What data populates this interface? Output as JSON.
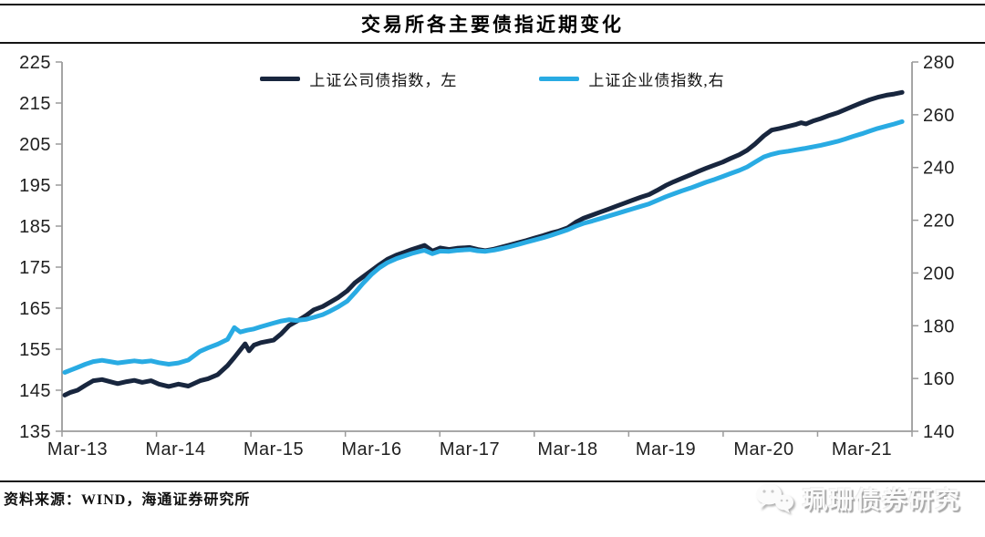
{
  "header": {
    "title": "交易所各主要债指近期变化"
  },
  "legend": {
    "items": [
      {
        "label": "上证公司债指数，左"
      },
      {
        "label": "上证企业债指数,右"
      }
    ]
  },
  "chart_data": {
    "type": "line",
    "title": "交易所各主要债指近期变化",
    "grid": false,
    "legend_position": "top",
    "x_axis": {
      "tick_labels": [
        "Mar-13",
        "Mar-14",
        "Mar-15",
        "Mar-16",
        "Mar-17",
        "Mar-18",
        "Mar-19",
        "Mar-20",
        "Mar-21"
      ]
    },
    "left_axis": {
      "min": 135,
      "max": 225,
      "ticks": [
        135,
        145,
        155,
        165,
        175,
        185,
        195,
        205,
        215,
        225
      ]
    },
    "right_axis": {
      "min": 140,
      "max": 280,
      "ticks": [
        140,
        160,
        180,
        200,
        220,
        240,
        260,
        280
      ]
    },
    "series": [
      {
        "name": "上证公司债指数，左",
        "axis": "left",
        "color": "#18263e",
        "points": [
          [
            2013.04,
            143.8
          ],
          [
            2013.1,
            144.5
          ],
          [
            2013.17,
            145.0
          ],
          [
            2013.25,
            146.2
          ],
          [
            2013.33,
            147.3
          ],
          [
            2013.42,
            147.6
          ],
          [
            2013.5,
            147.1
          ],
          [
            2013.58,
            146.6
          ],
          [
            2013.67,
            147.1
          ],
          [
            2013.75,
            147.4
          ],
          [
            2013.83,
            146.9
          ],
          [
            2013.92,
            147.3
          ],
          [
            2014.0,
            146.5
          ],
          [
            2014.1,
            145.9
          ],
          [
            2014.2,
            146.5
          ],
          [
            2014.3,
            146.0
          ],
          [
            2014.42,
            147.3
          ],
          [
            2014.5,
            147.8
          ],
          [
            2014.6,
            148.8
          ],
          [
            2014.7,
            151.0
          ],
          [
            2014.77,
            153.0
          ],
          [
            2014.83,
            154.8
          ],
          [
            2014.88,
            156.3
          ],
          [
            2014.92,
            154.6
          ],
          [
            2014.97,
            156.0
          ],
          [
            2015.04,
            156.6
          ],
          [
            2015.17,
            157.2
          ],
          [
            2015.25,
            158.8
          ],
          [
            2015.33,
            160.8
          ],
          [
            2015.42,
            162.0
          ],
          [
            2015.5,
            163.2
          ],
          [
            2015.58,
            164.6
          ],
          [
            2015.67,
            165.4
          ],
          [
            2015.75,
            166.5
          ],
          [
            2015.83,
            167.6
          ],
          [
            2015.92,
            169.2
          ],
          [
            2016.0,
            171.2
          ],
          [
            2016.08,
            172.6
          ],
          [
            2016.17,
            174.2
          ],
          [
            2016.25,
            175.6
          ],
          [
            2016.33,
            176.9
          ],
          [
            2016.42,
            177.9
          ],
          [
            2016.5,
            178.6
          ],
          [
            2016.58,
            179.3
          ],
          [
            2016.67,
            180.0
          ],
          [
            2016.71,
            180.3
          ],
          [
            2016.79,
            178.9
          ],
          [
            2016.87,
            179.7
          ],
          [
            2016.96,
            179.3
          ],
          [
            2017.04,
            179.6
          ],
          [
            2017.17,
            179.8
          ],
          [
            2017.25,
            179.3
          ],
          [
            2017.33,
            179.0
          ],
          [
            2017.42,
            179.4
          ],
          [
            2017.5,
            179.9
          ],
          [
            2017.58,
            180.4
          ],
          [
            2017.67,
            181.0
          ],
          [
            2017.75,
            181.5
          ],
          [
            2017.83,
            182.1
          ],
          [
            2017.92,
            182.7
          ],
          [
            2018.0,
            183.3
          ],
          [
            2018.08,
            183.8
          ],
          [
            2018.17,
            184.6
          ],
          [
            2018.25,
            185.9
          ],
          [
            2018.33,
            186.9
          ],
          [
            2018.42,
            187.7
          ],
          [
            2018.5,
            188.4
          ],
          [
            2018.58,
            189.1
          ],
          [
            2018.67,
            189.9
          ],
          [
            2018.75,
            190.6
          ],
          [
            2018.83,
            191.3
          ],
          [
            2018.92,
            192.1
          ],
          [
            2019.0,
            192.7
          ],
          [
            2019.08,
            193.7
          ],
          [
            2019.17,
            194.9
          ],
          [
            2019.25,
            195.8
          ],
          [
            2019.33,
            196.6
          ],
          [
            2019.42,
            197.5
          ],
          [
            2019.5,
            198.3
          ],
          [
            2019.58,
            199.1
          ],
          [
            2019.67,
            199.9
          ],
          [
            2019.75,
            200.6
          ],
          [
            2019.83,
            201.5
          ],
          [
            2019.92,
            202.4
          ],
          [
            2020.0,
            203.5
          ],
          [
            2020.08,
            205.0
          ],
          [
            2020.17,
            207.0
          ],
          [
            2020.25,
            208.4
          ],
          [
            2020.33,
            208.8
          ],
          [
            2020.42,
            209.3
          ],
          [
            2020.5,
            209.8
          ],
          [
            2020.55,
            210.2
          ],
          [
            2020.6,
            209.9
          ],
          [
            2020.67,
            210.6
          ],
          [
            2020.75,
            211.2
          ],
          [
            2020.83,
            211.9
          ],
          [
            2020.92,
            212.6
          ],
          [
            2021.0,
            213.4
          ],
          [
            2021.08,
            214.2
          ],
          [
            2021.17,
            215.1
          ],
          [
            2021.25,
            215.8
          ],
          [
            2021.33,
            216.4
          ],
          [
            2021.42,
            216.9
          ],
          [
            2021.5,
            217.2
          ],
          [
            2021.58,
            217.6
          ]
        ]
      },
      {
        "name": "上证企业债指数,右",
        "axis": "right",
        "color": "#29abe3",
        "points": [
          [
            2013.04,
            162.3
          ],
          [
            2013.1,
            163.2
          ],
          [
            2013.17,
            164.2
          ],
          [
            2013.25,
            165.4
          ],
          [
            2013.33,
            166.4
          ],
          [
            2013.42,
            166.9
          ],
          [
            2013.5,
            166.4
          ],
          [
            2013.58,
            165.9
          ],
          [
            2013.67,
            166.3
          ],
          [
            2013.75,
            166.7
          ],
          [
            2013.83,
            166.3
          ],
          [
            2013.92,
            166.7
          ],
          [
            2014.0,
            166.0
          ],
          [
            2014.1,
            165.4
          ],
          [
            2014.2,
            165.9
          ],
          [
            2014.3,
            167.0
          ],
          [
            2014.42,
            170.3
          ],
          [
            2014.5,
            171.6
          ],
          [
            2014.6,
            173.0
          ],
          [
            2014.7,
            174.8
          ],
          [
            2014.77,
            179.3
          ],
          [
            2014.83,
            177.6
          ],
          [
            2014.9,
            178.3
          ],
          [
            2014.97,
            178.8
          ],
          [
            2015.04,
            179.6
          ],
          [
            2015.17,
            181.0
          ],
          [
            2015.25,
            181.8
          ],
          [
            2015.33,
            182.3
          ],
          [
            2015.4,
            182.0
          ],
          [
            2015.5,
            182.4
          ],
          [
            2015.58,
            183.2
          ],
          [
            2015.67,
            184.2
          ],
          [
            2015.75,
            185.6
          ],
          [
            2015.83,
            187.2
          ],
          [
            2015.92,
            189.3
          ],
          [
            2016.0,
            192.5
          ],
          [
            2016.08,
            196.0
          ],
          [
            2016.17,
            199.5
          ],
          [
            2016.25,
            202.0
          ],
          [
            2016.33,
            203.9
          ],
          [
            2016.42,
            205.4
          ],
          [
            2016.5,
            206.4
          ],
          [
            2016.58,
            207.4
          ],
          [
            2016.67,
            208.3
          ],
          [
            2016.71,
            208.6
          ],
          [
            2016.79,
            207.3
          ],
          [
            2016.87,
            208.3
          ],
          [
            2016.96,
            208.2
          ],
          [
            2017.04,
            208.6
          ],
          [
            2017.17,
            208.9
          ],
          [
            2017.25,
            208.4
          ],
          [
            2017.33,
            208.2
          ],
          [
            2017.42,
            208.7
          ],
          [
            2017.5,
            209.3
          ],
          [
            2017.58,
            210.0
          ],
          [
            2017.67,
            210.9
          ],
          [
            2017.75,
            211.7
          ],
          [
            2017.83,
            212.5
          ],
          [
            2017.92,
            213.4
          ],
          [
            2018.0,
            214.3
          ],
          [
            2018.08,
            215.3
          ],
          [
            2018.17,
            216.4
          ],
          [
            2018.25,
            217.7
          ],
          [
            2018.33,
            218.8
          ],
          [
            2018.42,
            219.7
          ],
          [
            2018.5,
            220.6
          ],
          [
            2018.58,
            221.5
          ],
          [
            2018.67,
            222.5
          ],
          [
            2018.75,
            223.4
          ],
          [
            2018.83,
            224.3
          ],
          [
            2018.92,
            225.3
          ],
          [
            2019.0,
            226.2
          ],
          [
            2019.08,
            227.5
          ],
          [
            2019.17,
            228.9
          ],
          [
            2019.25,
            230.0
          ],
          [
            2019.33,
            231.1
          ],
          [
            2019.42,
            232.2
          ],
          [
            2019.5,
            233.3
          ],
          [
            2019.58,
            234.4
          ],
          [
            2019.67,
            235.5
          ],
          [
            2019.75,
            236.6
          ],
          [
            2019.83,
            237.7
          ],
          [
            2019.92,
            238.9
          ],
          [
            2020.0,
            240.2
          ],
          [
            2020.08,
            242.0
          ],
          [
            2020.17,
            244.0
          ],
          [
            2020.25,
            245.0
          ],
          [
            2020.33,
            245.7
          ],
          [
            2020.42,
            246.2
          ],
          [
            2020.5,
            246.7
          ],
          [
            2020.58,
            247.2
          ],
          [
            2020.67,
            247.8
          ],
          [
            2020.75,
            248.4
          ],
          [
            2020.83,
            249.1
          ],
          [
            2020.92,
            249.9
          ],
          [
            2021.0,
            250.8
          ],
          [
            2021.08,
            251.8
          ],
          [
            2021.17,
            252.8
          ],
          [
            2021.25,
            253.8
          ],
          [
            2021.33,
            254.8
          ],
          [
            2021.42,
            255.7
          ],
          [
            2021.5,
            256.5
          ],
          [
            2021.58,
            257.4
          ]
        ]
      }
    ]
  },
  "footer": {
    "source": "资料来源：WIND，海通证券研究所"
  },
  "watermark": {
    "text": "珮珊债券研究",
    "icon": "wechat-icon"
  },
  "colors": {
    "axis": "#9b9b9b",
    "dark_series": "#18263e",
    "light_series": "#29abe3"
  }
}
